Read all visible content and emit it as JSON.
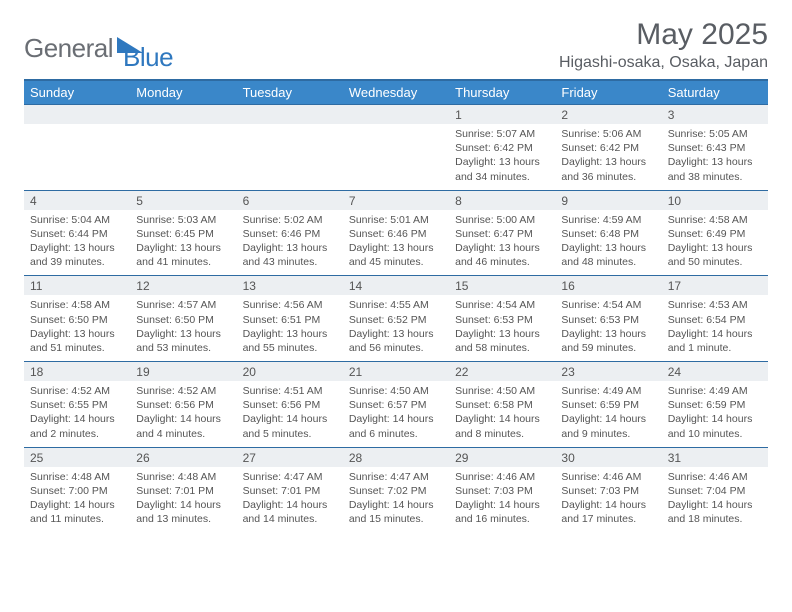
{
  "logo": {
    "part1": "General",
    "part2": "Blue"
  },
  "title": "May 2025",
  "location": "Higashi-osaka, Osaka, Japan",
  "colors": {
    "header_bg": "#3a87c9",
    "header_border": "#2e6ba2",
    "daynum_bg": "#eceff2",
    "text": "#555555",
    "logo_gray": "#6a6e74",
    "logo_blue": "#2f78bf"
  },
  "weekdays": [
    "Sunday",
    "Monday",
    "Tuesday",
    "Wednesday",
    "Thursday",
    "Friday",
    "Saturday"
  ],
  "weeks": [
    [
      null,
      null,
      null,
      null,
      {
        "n": "1",
        "sr": "Sunrise: 5:07 AM",
        "ss": "Sunset: 6:42 PM",
        "dl": "Daylight: 13 hours and 34 minutes."
      },
      {
        "n": "2",
        "sr": "Sunrise: 5:06 AM",
        "ss": "Sunset: 6:42 PM",
        "dl": "Daylight: 13 hours and 36 minutes."
      },
      {
        "n": "3",
        "sr": "Sunrise: 5:05 AM",
        "ss": "Sunset: 6:43 PM",
        "dl": "Daylight: 13 hours and 38 minutes."
      }
    ],
    [
      {
        "n": "4",
        "sr": "Sunrise: 5:04 AM",
        "ss": "Sunset: 6:44 PM",
        "dl": "Daylight: 13 hours and 39 minutes."
      },
      {
        "n": "5",
        "sr": "Sunrise: 5:03 AM",
        "ss": "Sunset: 6:45 PM",
        "dl": "Daylight: 13 hours and 41 minutes."
      },
      {
        "n": "6",
        "sr": "Sunrise: 5:02 AM",
        "ss": "Sunset: 6:46 PM",
        "dl": "Daylight: 13 hours and 43 minutes."
      },
      {
        "n": "7",
        "sr": "Sunrise: 5:01 AM",
        "ss": "Sunset: 6:46 PM",
        "dl": "Daylight: 13 hours and 45 minutes."
      },
      {
        "n": "8",
        "sr": "Sunrise: 5:00 AM",
        "ss": "Sunset: 6:47 PM",
        "dl": "Daylight: 13 hours and 46 minutes."
      },
      {
        "n": "9",
        "sr": "Sunrise: 4:59 AM",
        "ss": "Sunset: 6:48 PM",
        "dl": "Daylight: 13 hours and 48 minutes."
      },
      {
        "n": "10",
        "sr": "Sunrise: 4:58 AM",
        "ss": "Sunset: 6:49 PM",
        "dl": "Daylight: 13 hours and 50 minutes."
      }
    ],
    [
      {
        "n": "11",
        "sr": "Sunrise: 4:58 AM",
        "ss": "Sunset: 6:50 PM",
        "dl": "Daylight: 13 hours and 51 minutes."
      },
      {
        "n": "12",
        "sr": "Sunrise: 4:57 AM",
        "ss": "Sunset: 6:50 PM",
        "dl": "Daylight: 13 hours and 53 minutes."
      },
      {
        "n": "13",
        "sr": "Sunrise: 4:56 AM",
        "ss": "Sunset: 6:51 PM",
        "dl": "Daylight: 13 hours and 55 minutes."
      },
      {
        "n": "14",
        "sr": "Sunrise: 4:55 AM",
        "ss": "Sunset: 6:52 PM",
        "dl": "Daylight: 13 hours and 56 minutes."
      },
      {
        "n": "15",
        "sr": "Sunrise: 4:54 AM",
        "ss": "Sunset: 6:53 PM",
        "dl": "Daylight: 13 hours and 58 minutes."
      },
      {
        "n": "16",
        "sr": "Sunrise: 4:54 AM",
        "ss": "Sunset: 6:53 PM",
        "dl": "Daylight: 13 hours and 59 minutes."
      },
      {
        "n": "17",
        "sr": "Sunrise: 4:53 AM",
        "ss": "Sunset: 6:54 PM",
        "dl": "Daylight: 14 hours and 1 minute."
      }
    ],
    [
      {
        "n": "18",
        "sr": "Sunrise: 4:52 AM",
        "ss": "Sunset: 6:55 PM",
        "dl": "Daylight: 14 hours and 2 minutes."
      },
      {
        "n": "19",
        "sr": "Sunrise: 4:52 AM",
        "ss": "Sunset: 6:56 PM",
        "dl": "Daylight: 14 hours and 4 minutes."
      },
      {
        "n": "20",
        "sr": "Sunrise: 4:51 AM",
        "ss": "Sunset: 6:56 PM",
        "dl": "Daylight: 14 hours and 5 minutes."
      },
      {
        "n": "21",
        "sr": "Sunrise: 4:50 AM",
        "ss": "Sunset: 6:57 PM",
        "dl": "Daylight: 14 hours and 6 minutes."
      },
      {
        "n": "22",
        "sr": "Sunrise: 4:50 AM",
        "ss": "Sunset: 6:58 PM",
        "dl": "Daylight: 14 hours and 8 minutes."
      },
      {
        "n": "23",
        "sr": "Sunrise: 4:49 AM",
        "ss": "Sunset: 6:59 PM",
        "dl": "Daylight: 14 hours and 9 minutes."
      },
      {
        "n": "24",
        "sr": "Sunrise: 4:49 AM",
        "ss": "Sunset: 6:59 PM",
        "dl": "Daylight: 14 hours and 10 minutes."
      }
    ],
    [
      {
        "n": "25",
        "sr": "Sunrise: 4:48 AM",
        "ss": "Sunset: 7:00 PM",
        "dl": "Daylight: 14 hours and 11 minutes."
      },
      {
        "n": "26",
        "sr": "Sunrise: 4:48 AM",
        "ss": "Sunset: 7:01 PM",
        "dl": "Daylight: 14 hours and 13 minutes."
      },
      {
        "n": "27",
        "sr": "Sunrise: 4:47 AM",
        "ss": "Sunset: 7:01 PM",
        "dl": "Daylight: 14 hours and 14 minutes."
      },
      {
        "n": "28",
        "sr": "Sunrise: 4:47 AM",
        "ss": "Sunset: 7:02 PM",
        "dl": "Daylight: 14 hours and 15 minutes."
      },
      {
        "n": "29",
        "sr": "Sunrise: 4:46 AM",
        "ss": "Sunset: 7:03 PM",
        "dl": "Daylight: 14 hours and 16 minutes."
      },
      {
        "n": "30",
        "sr": "Sunrise: 4:46 AM",
        "ss": "Sunset: 7:03 PM",
        "dl": "Daylight: 14 hours and 17 minutes."
      },
      {
        "n": "31",
        "sr": "Sunrise: 4:46 AM",
        "ss": "Sunset: 7:04 PM",
        "dl": "Daylight: 14 hours and 18 minutes."
      }
    ]
  ]
}
